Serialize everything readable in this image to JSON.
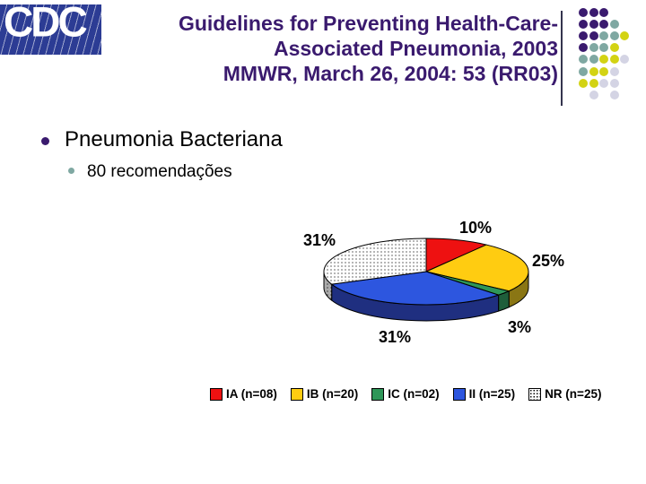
{
  "slide": {
    "logo_text": "CDC",
    "title_lines": [
      "Guidelines for Preventing Health-Care-",
      "Associated Pneumonia, 2003",
      "MMWR, March 26, 2004: 53 (RR03)"
    ],
    "title_color": "#3A1A6E",
    "bullets": [
      {
        "level": 1,
        "text": "Pneumonia Bacteriana",
        "bullet_color": "#3A1A6E"
      },
      {
        "level": 2,
        "text": "80 recomendações",
        "bullet_color": "#7FA8A2"
      }
    ]
  },
  "decor": {
    "palette": {
      "P": "#3A1A6E",
      "T": "#7FA8A2",
      "Y": "#D3D313",
      "G": "#D4D4E4"
    },
    "rows": [
      "PPP",
      "PPPT",
      "PPTTY",
      "PTTY",
      "TTYYG",
      "TYYG",
      "YYGG",
      ".G.G"
    ]
  },
  "chart_data": {
    "type": "pie",
    "three_d": true,
    "start": "12 o'clock, clockwise",
    "total": 80,
    "legend_position": "bottom",
    "slices": [
      {
        "name": "IA",
        "legend_label": "IA (n=08)",
        "n": 8,
        "pct": 10,
        "pct_label": "10%",
        "color": "#EE1111",
        "side_color": "#8A0E0E",
        "pattern": false
      },
      {
        "name": "IB",
        "legend_label": "IB (n=20)",
        "n": 20,
        "pct": 25,
        "pct_label": "25%",
        "color": "#FFCC11",
        "side_color": "#8A7614",
        "pattern": false
      },
      {
        "name": "IC",
        "legend_label": "IC (n=02)",
        "n": 2,
        "pct": 3,
        "pct_label": "3%",
        "color": "#2E9658",
        "side_color": "#1E5E3A",
        "pattern": false
      },
      {
        "name": "II",
        "legend_label": "II (n=25)",
        "n": 25,
        "pct": 31,
        "pct_label": "31%",
        "color": "#2D56DF",
        "side_color": "#1F2F80",
        "pattern": false
      },
      {
        "name": "NR",
        "legend_label": "NR (n=25)",
        "n": 25,
        "pct": 31,
        "pct_label": "31%",
        "color": "#FFFFFF",
        "side_color": "#ABABAB",
        "pattern": true
      }
    ]
  }
}
